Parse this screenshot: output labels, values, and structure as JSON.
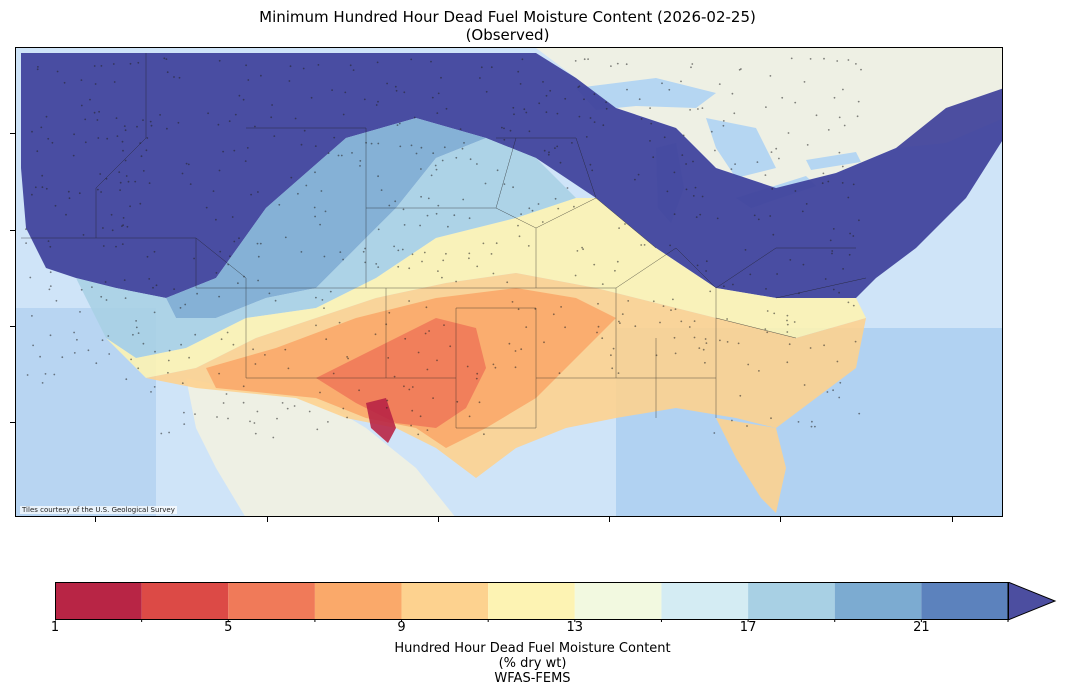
{
  "title_line1": "Minimum Hundred Hour Dead Fuel Moisture Content (2026-02-25)",
  "title_line2": "(Observed)",
  "attribution": "Tiles courtesy of the U.S. Geological Survey",
  "colorbar": {
    "label_line1": "Hundred Hour Dead Fuel Moisture Content",
    "label_line2": "(% dry wt)",
    "label_line3": "WFAS-FEMS",
    "min": 1,
    "max": 23,
    "tick_labels": [
      "1",
      "5",
      "9",
      "13",
      "17",
      "21"
    ],
    "tick_values": [
      1,
      5,
      9,
      13,
      17,
      21
    ],
    "bins": [
      {
        "from": 1,
        "to": 3,
        "color": "#b82545"
      },
      {
        "from": 3,
        "to": 5,
        "color": "#dc4a46"
      },
      {
        "from": 5,
        "to": 7,
        "color": "#f07a59"
      },
      {
        "from": 7,
        "to": 9,
        "color": "#faa96a"
      },
      {
        "from": 9,
        "to": 11,
        "color": "#fdd28f"
      },
      {
        "from": 11,
        "to": 13,
        "color": "#fdf3b3"
      },
      {
        "from": 13,
        "to": 15,
        "color": "#f2f9e0"
      },
      {
        "from": 15,
        "to": 17,
        "color": "#d4ecf3"
      },
      {
        "from": 17,
        "to": 19,
        "color": "#a8d0e4"
      },
      {
        "from": 19,
        "to": 21,
        "color": "#7cabd1"
      },
      {
        "from": 21,
        "to": 23,
        "color": "#5c82bd"
      }
    ],
    "extend_color": "#4c4ea0"
  },
  "map": {
    "ocean_color": "#cfe4f8",
    "land_color": "#eef0e4",
    "wet_color": "#3a3c98"
  }
}
